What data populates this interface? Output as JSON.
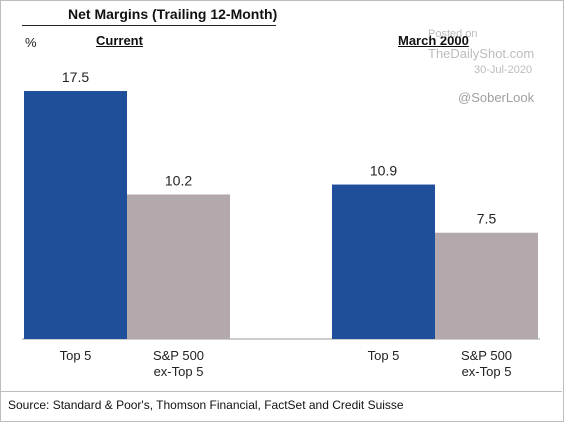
{
  "chart_data": {
    "type": "bar",
    "title": "Net Margins (Trailing 12-Month)",
    "unit": "%",
    "groups": [
      "Current",
      "March 2000"
    ],
    "categories": [
      "Top 5",
      "S&P 500\nex-Top 5"
    ],
    "series": [
      {
        "group": "Current",
        "values": [
          17.5,
          10.2
        ]
      },
      {
        "group": "March 2000",
        "values": [
          10.9,
          7.5
        ]
      }
    ],
    "colors": [
      "#1f4e9a",
      "#b3a9ad"
    ],
    "ylim": [
      0,
      20
    ],
    "grid": false
  },
  "watermark": {
    "posted": "Posted on",
    "site": "TheDailyShot.com",
    "date": "30-Jul-2020",
    "handle": "@SoberLook"
  },
  "source": "Source: Standard & Poor's, Thomson Financial, FactSet and Credit Suisse"
}
